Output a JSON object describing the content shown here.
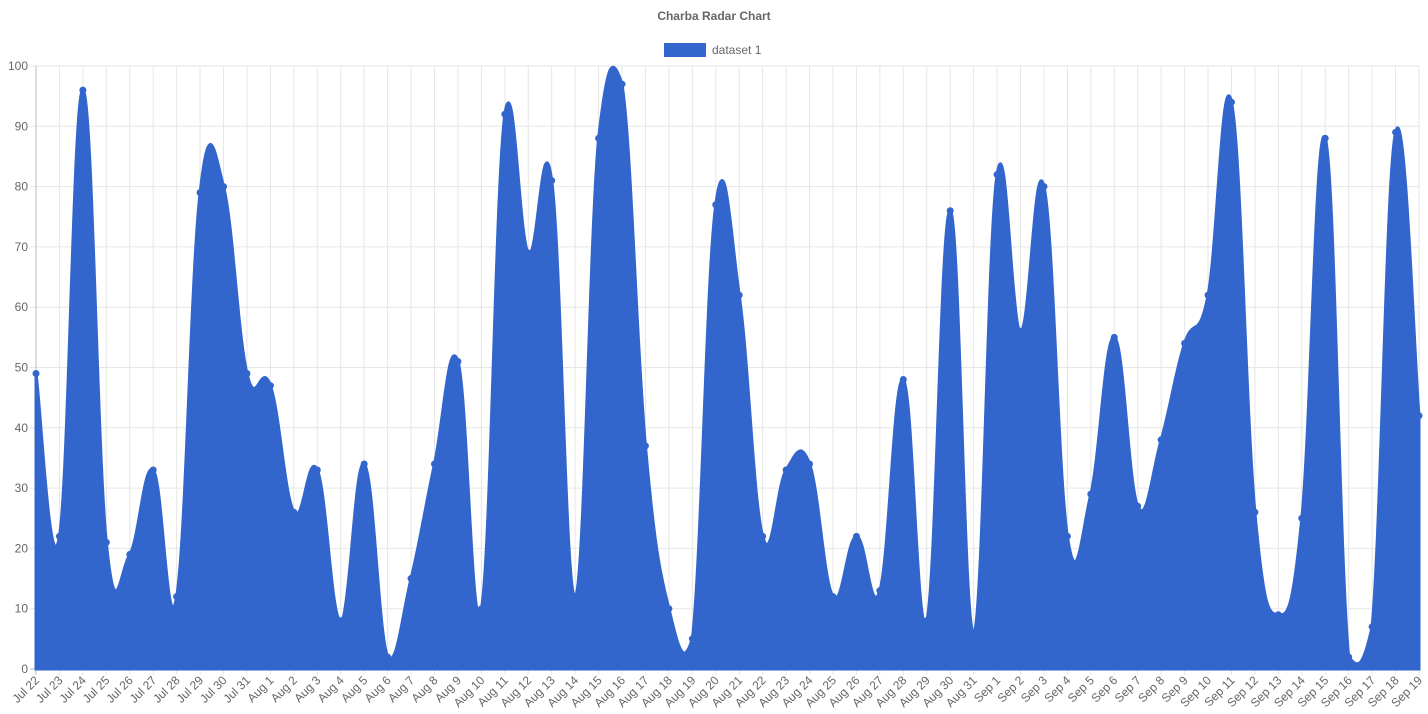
{
  "chart_data": {
    "type": "area",
    "title": "Charba Radar Chart",
    "categories": [
      "Jul 22",
      "Jul 23",
      "Jul 24",
      "Jul 25",
      "Jul 26",
      "Jul 27",
      "Jul 28",
      "Jul 29",
      "Jul 30",
      "Jul 31",
      "Aug 1",
      "Aug 2",
      "Aug 3",
      "Aug 4",
      "Aug 5",
      "Aug 6",
      "Aug 7",
      "Aug 8",
      "Aug 9",
      "Aug 10",
      "Aug 11",
      "Aug 12",
      "Aug 13",
      "Aug 14",
      "Aug 15",
      "Aug 16",
      "Aug 17",
      "Aug 18",
      "Aug 19",
      "Aug 20",
      "Aug 21",
      "Aug 22",
      "Aug 23",
      "Aug 24",
      "Aug 25",
      "Aug 26",
      "Aug 27",
      "Aug 28",
      "Aug 29",
      "Aug 30",
      "Aug 31",
      "Sep 1",
      "Sep 2",
      "Sep 3",
      "Sep 4",
      "Sep 5",
      "Sep 6",
      "Sep 7",
      "Sep 8",
      "Sep 9",
      "Sep 10",
      "Sep 11",
      "Sep 12",
      "Sep 13",
      "Sep 14",
      "Sep 15",
      "Sep 16",
      "Sep 17",
      "Sep 18",
      "Sep 19"
    ],
    "series": [
      {
        "name": "dataset 1",
        "color": "#3366cc",
        "values": [
          49,
          22,
          96,
          21,
          19,
          33,
          12,
          79,
          80,
          49,
          47,
          26,
          33,
          8,
          34,
          2,
          15,
          34,
          51,
          10,
          92,
          69,
          81,
          12,
          88,
          97,
          37,
          10,
          5,
          77,
          62,
          22,
          33,
          34,
          12,
          22,
          13,
          48,
          8,
          76,
          6,
          82,
          56,
          80,
          22,
          29,
          55,
          27,
          38,
          54,
          62,
          94,
          26,
          9,
          25,
          88,
          2,
          7,
          89,
          42
        ]
      }
    ],
    "ylim": [
      0,
      100
    ],
    "yticks": [
      0,
      10,
      20,
      30,
      40,
      50,
      60,
      70,
      80,
      90,
      100
    ],
    "grid": true,
    "legend_position": "top"
  },
  "colors": {
    "fill": "#3366cc",
    "grid": "#e6e6e6",
    "text": "#666666"
  }
}
